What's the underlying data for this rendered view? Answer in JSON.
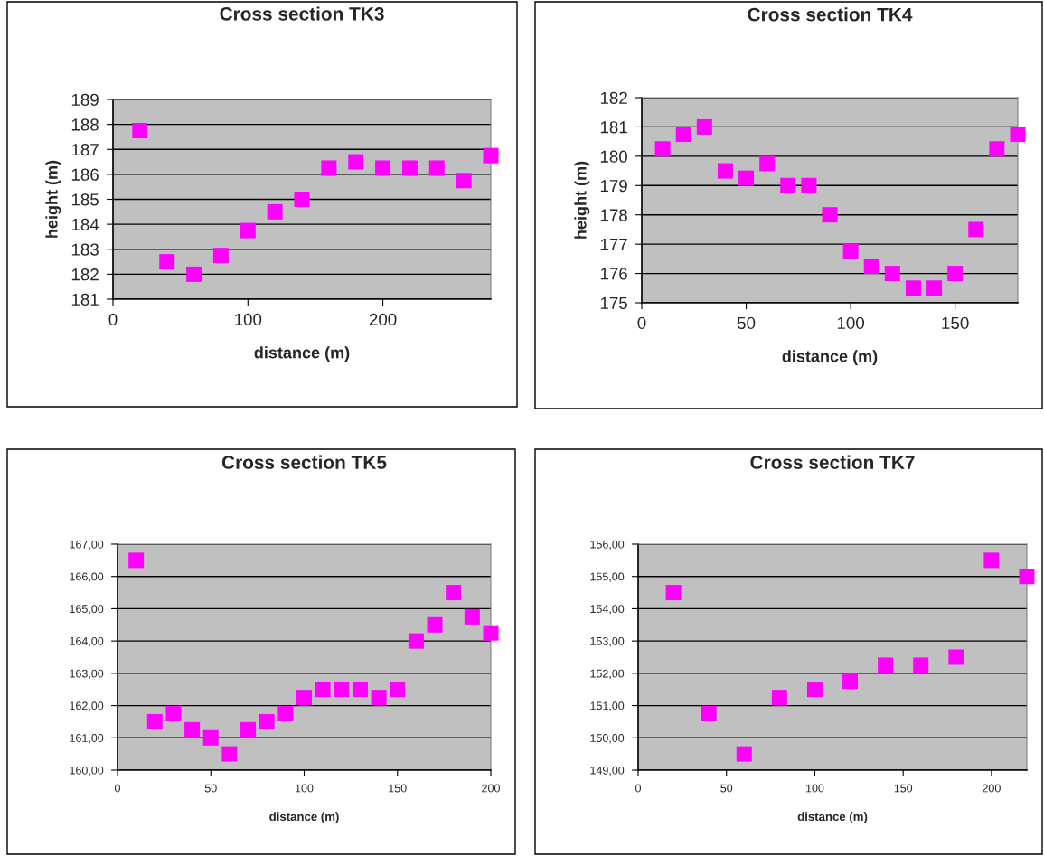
{
  "chart_data": [
    {
      "type": "scatter",
      "title": "Cross section TK3",
      "xlabel": "distance (m)",
      "ylabel": "height (m)",
      "marker": "square",
      "grid": "y",
      "legend": false,
      "xlim": [
        0,
        280
      ],
      "xticks": [
        0,
        100,
        200
      ],
      "ylim": [
        181,
        189
      ],
      "yticks": [
        181,
        182,
        183,
        184,
        185,
        186,
        187,
        188,
        189
      ],
      "x": [
        20,
        40,
        60,
        80,
        100,
        120,
        140,
        160,
        180,
        200,
        220,
        240,
        260,
        280
      ],
      "series": [
        {
          "color": "#ff00ff",
          "values": [
            187.75,
            182.5,
            182,
            182.75,
            183.75,
            184.5,
            185,
            186.25,
            186.5,
            186.25,
            186.25,
            186.25,
            185.75,
            186.75
          ]
        }
      ]
    },
    {
      "type": "scatter",
      "title": "Cross section TK4",
      "xlabel": "distance (m)",
      "ylabel": "height (m)",
      "marker": "square",
      "grid": "y",
      "legend": false,
      "xlim": [
        0,
        180
      ],
      "xticks": [
        0,
        50,
        100,
        150
      ],
      "ylim": [
        175,
        182
      ],
      "yticks": [
        175,
        176,
        177,
        178,
        179,
        180,
        181,
        182
      ],
      "x": [
        10,
        20,
        30,
        40,
        50,
        60,
        70,
        80,
        90,
        100,
        110,
        120,
        130,
        140,
        150,
        160,
        170,
        180
      ],
      "series": [
        {
          "color": "#ff00ff",
          "values": [
            180.25,
            180.75,
            181,
            179.5,
            179.25,
            179.75,
            179,
            179,
            178,
            176.75,
            176.25,
            176,
            175.5,
            175.5,
            176,
            177.5,
            180.25,
            180.75
          ]
        }
      ]
    },
    {
      "type": "scatter",
      "title": "Cross section TK5",
      "xlabel": "distance (m)",
      "marker": "square",
      "grid": "y",
      "legend": false,
      "xlim": [
        0,
        200
      ],
      "xticks": [
        0,
        50,
        100,
        150,
        200
      ],
      "ylim": [
        160,
        167
      ],
      "yticks": [
        {
          "value": 160,
          "label": "160,00"
        },
        {
          "value": 161,
          "label": "161,00"
        },
        {
          "value": 162,
          "label": "162,00"
        },
        {
          "value": 163,
          "label": "163,00"
        },
        {
          "value": 164,
          "label": "164,00"
        },
        {
          "value": 165,
          "label": "165,00"
        },
        {
          "value": 166,
          "label": "166,00"
        },
        {
          "value": 167,
          "label": "167,00"
        }
      ],
      "x": [
        10,
        20,
        30,
        40,
        50,
        60,
        70,
        80,
        90,
        100,
        110,
        120,
        130,
        140,
        150,
        160,
        170,
        180,
        190,
        200
      ],
      "series": [
        {
          "color": "#ff00ff",
          "values": [
            166.5,
            161.5,
            161.75,
            161.25,
            161,
            160.5,
            161.25,
            161.5,
            161.75,
            162.25,
            162.5,
            162.5,
            162.5,
            162.25,
            162.5,
            164,
            164.5,
            165.5,
            164.75,
            164.25
          ]
        }
      ]
    },
    {
      "type": "scatter",
      "title": "Cross section TK7",
      "xlabel": "distance (m)",
      "marker": "square",
      "grid": "y",
      "legend": false,
      "xlim": [
        0,
        220
      ],
      "xticks": [
        0,
        50,
        100,
        150,
        200
      ],
      "ylim": [
        149,
        156
      ],
      "yticks": [
        {
          "value": 149,
          "label": "149,00"
        },
        {
          "value": 150,
          "label": "150,00"
        },
        {
          "value": 151,
          "label": "151,00"
        },
        {
          "value": 152,
          "label": "152,00"
        },
        {
          "value": 153,
          "label": "153,00"
        },
        {
          "value": 154,
          "label": "154,00"
        },
        {
          "value": 155,
          "label": "155,00"
        },
        {
          "value": 156,
          "label": "156,00"
        }
      ],
      "x": [
        20,
        40,
        60,
        80,
        100,
        120,
        140,
        160,
        180,
        200,
        220
      ],
      "series": [
        {
          "color": "#ff00ff",
          "values": [
            154.5,
            150.75,
            149.5,
            151.25,
            151.5,
            151.75,
            152.25,
            152.25,
            152.5,
            155.5,
            155
          ]
        }
      ]
    }
  ]
}
